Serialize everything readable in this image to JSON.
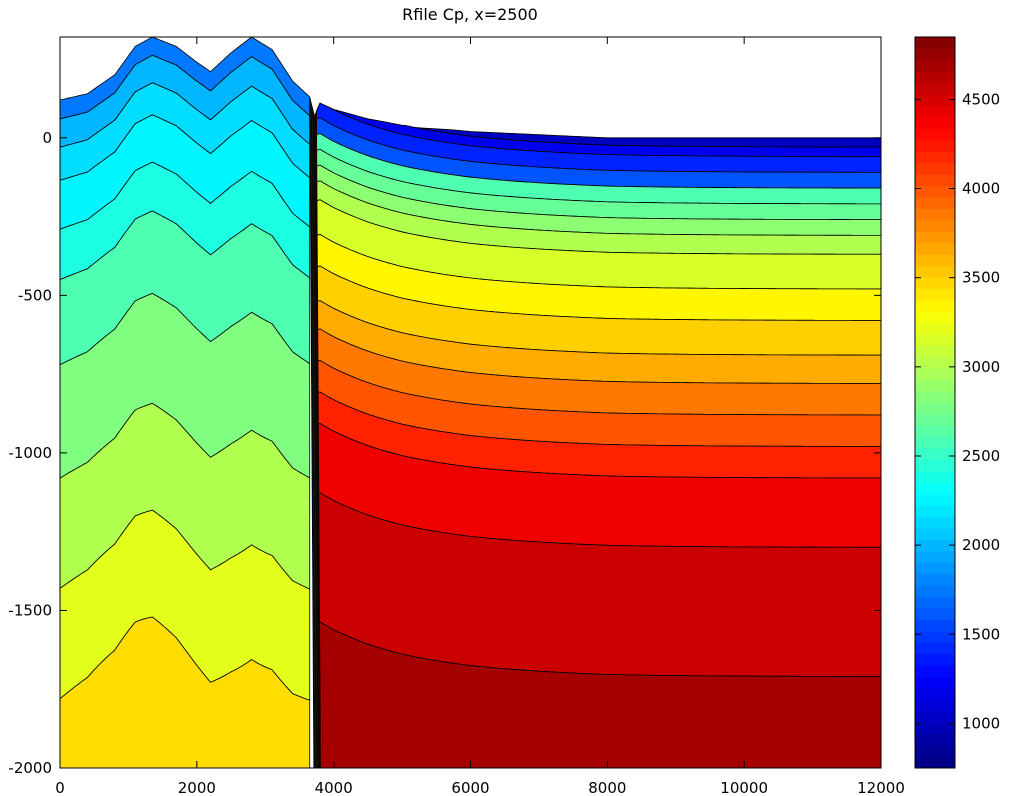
{
  "chart_data": {
    "type": "contour",
    "title": "Rfile Cp, x=2500",
    "xlabel": "",
    "ylabel": "",
    "xlim": [
      0,
      12000
    ],
    "ylim": [
      -2000,
      320
    ],
    "x_ticks": [
      "0",
      "2000",
      "4000",
      "6000",
      "8000",
      "10000",
      "12000"
    ],
    "y_ticks": [
      "0",
      "-500",
      "-1000",
      "-1500",
      "-2000"
    ],
    "colorbar": {
      "range": [
        750,
        4850
      ],
      "ticks": [
        "1000",
        "1500",
        "2000",
        "2500",
        "3000",
        "3500",
        "4000",
        "4500"
      ],
      "colormap": "jet"
    },
    "surface_profile": {
      "x": [
        0,
        400,
        800,
        1100,
        1350,
        1700,
        2000,
        2200,
        2500,
        2800,
        3100,
        3400,
        3650,
        3720,
        3800,
        4000,
        4500,
        5000,
        6000,
        7000,
        8000,
        10000,
        12000
      ],
      "y": [
        120,
        140,
        200,
        290,
        320,
        290,
        240,
        210,
        270,
        320,
        280,
        180,
        130,
        70,
        110,
        90,
        60,
        40,
        20,
        10,
        0,
        0,
        0
      ]
    },
    "left_block": {
      "x_range": [
        0,
        3650
      ],
      "depth_offsets": [
        0,
        60,
        150,
        255,
        410,
        570,
        840,
        1200,
        1550,
        1900
      ],
      "band_values": [
        1750,
        2000,
        2150,
        2250,
        2400,
        2600,
        2800,
        3000,
        3200,
        3450
      ]
    },
    "right_block": {
      "x_range": [
        3750,
        12000
      ],
      "layer_boundaries_far_field": [
        10,
        -30,
        -60,
        -110,
        -160,
        -210,
        -260,
        -310,
        -370,
        -480,
        -580,
        -690,
        -780,
        -880,
        -980,
        -1080,
        -1300,
        -1710
      ],
      "band_values": [
        1000,
        1200,
        1400,
        1600,
        2600,
        2700,
        2850,
        3000,
        3150,
        3350,
        3500,
        3650,
        3850,
        4000,
        4200,
        4400,
        4550,
        4700
      ]
    }
  }
}
